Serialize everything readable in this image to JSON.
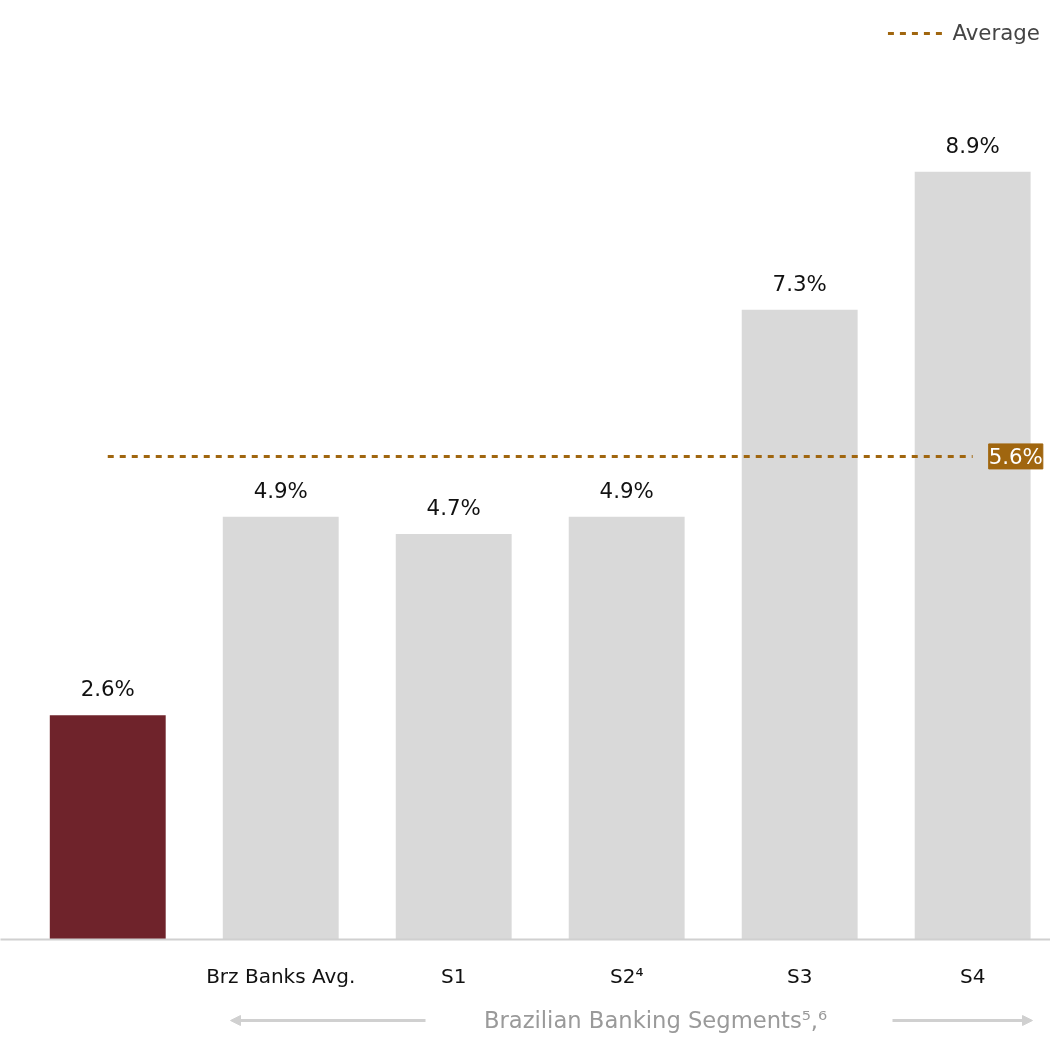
{
  "chart_data": {
    "type": "bar",
    "categories": [
      null,
      "Brz Banks Avg.",
      "S1",
      "S2⁴",
      "S3",
      "S4"
    ],
    "series": [
      {
        "colors": [
          "#6f232b",
          "#d9d9d9",
          "#d9d9d9",
          "#d9d9d9",
          "#d9d9d9",
          "#d9d9d9"
        ],
        "values": [
          2.6,
          4.9,
          4.7,
          4.9,
          7.3,
          8.9
        ],
        "value_labels": [
          "2.6%",
          "4.9%",
          "4.7%",
          "4.9%",
          "7.3%",
          "8.9%"
        ]
      },
      {
        "type": "line",
        "name": "Average",
        "color": "#a0660f",
        "line_style": "dashed",
        "values": [
          5.6,
          5.6,
          5.6,
          5.6,
          5.6,
          5.6
        ],
        "value_labels": [
          null,
          null,
          null,
          null,
          null,
          "5.6%"
        ]
      }
    ],
    "annotations": [
      "Brazilian Banking Segments⁵,⁶"
    ],
    "legend": "top right",
    "grid": false
  }
}
